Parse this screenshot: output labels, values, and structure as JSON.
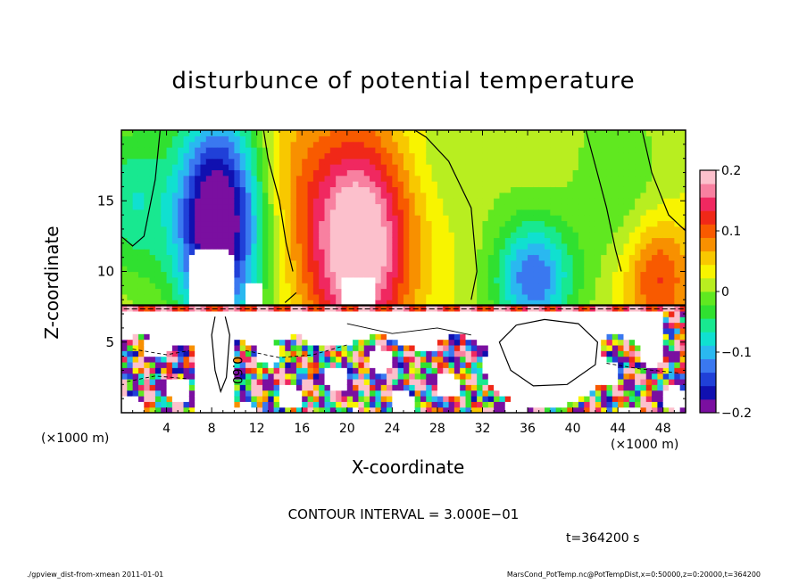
{
  "chart_data": {
    "type": "heatmap",
    "title": "disturbunce of potential temperature",
    "xlabel": "X-coordinate",
    "ylabel": "Z-coordinate",
    "x_units": "(×1000 m)",
    "y_units": "(×1000 m)",
    "xlim": [
      0,
      50
    ],
    "ylim": [
      0,
      20
    ],
    "x_ticks": [
      4,
      8,
      12,
      16,
      20,
      24,
      28,
      32,
      36,
      40,
      44,
      48
    ],
    "x_tick_labels": [
      "4",
      "8",
      "12",
      "16",
      "20",
      "24",
      "28",
      "32",
      "36",
      "40",
      "44",
      "48"
    ],
    "y_ticks": [
      5,
      10,
      15
    ],
    "y_tick_labels": [
      "5",
      "10",
      "15"
    ],
    "colorbar": {
      "range": [
        -0.2,
        0.2
      ],
      "ticks": [
        0.2,
        0.1,
        0,
        -0.1,
        -0.2
      ],
      "tick_labels": [
        "0.2",
        "0.1",
        "0",
        "−0.1",
        "−0.2"
      ],
      "colors": [
        "#7a0fa0",
        "#1010b0",
        "#2040d8",
        "#3a78f0",
        "#2ab8f0",
        "#10e0d0",
        "#18e890",
        "#30e030",
        "#60e820",
        "#b8ee20",
        "#f8f400",
        "#f8c800",
        "#f89000",
        "#f85a00",
        "#f02818",
        "#f02860",
        "#f880a0",
        "#fcc0cc"
      ]
    },
    "contour_label": "0.60",
    "grid": false
  },
  "contour_interval": "CONTOUR INTERVAL = 3.000E−01",
  "time_label": "t=364200 s",
  "footer_left": "./gpview_dist-from-xmean   2011-01-01",
  "footer_right": "MarsCond_PotTemp.nc@PotTempDist,x=0:50000,z=0:20000,t=364200"
}
